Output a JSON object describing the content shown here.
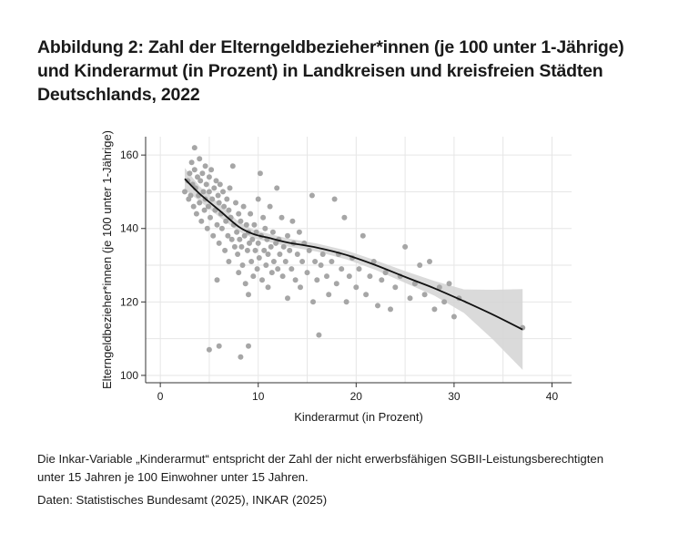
{
  "title": {
    "line1": "Abbildung 2: Zahl der Elterngeldbezieher*innen (je 100 unter 1-Jährige)",
    "line2": "und Kinderarmut (in Prozent) in Landkreisen und kreisfreien Städten",
    "line3": "Deutschlands, 2022"
  },
  "note": {
    "line1": "Die Inkar-Variable „Kinderarmut“ entspricht der Zahl der nicht erwerbsfähigen SGBII-Leistungsberechtigten",
    "line2": "unter 15 Jahren je 100 Einwohner unter 15 Jahren."
  },
  "source": "Daten: Statistisches Bundesamt (2025), INKAR (2025)",
  "colors": {
    "points": "#a6a6a6",
    "fit_line": "#111111",
    "confidence_band": "#d4d4d4",
    "grid": "#e6e6e6",
    "axis": "#333333"
  },
  "chart_data": {
    "type": "scatter",
    "xlabel": "Kinderarmut (in Prozent)",
    "ylabel": "Elterngeldbezieher*innen (je 100 unter 1-Jährige)",
    "xlim": [
      -1.5,
      42
    ],
    "ylim": [
      98,
      165
    ],
    "xticks": [
      0,
      10,
      20,
      30,
      40
    ],
    "yticks": [
      100,
      120,
      140,
      160
    ],
    "grid": true,
    "legend": "none",
    "fit": {
      "x": [
        2.5,
        4,
        6,
        8,
        9.5,
        11,
        13,
        16,
        19,
        22,
        25,
        28,
        31,
        34,
        37
      ],
      "y": [
        153.5,
        149.5,
        145,
        140.5,
        138.5,
        137.5,
        136.2,
        134.8,
        132.8,
        130,
        126.8,
        123.7,
        120.2,
        116.5,
        112.5
      ],
      "upper": [
        156.5,
        151.5,
        146.8,
        141.8,
        139.7,
        138.6,
        137.3,
        135.9,
        134,
        131.3,
        128.4,
        125.7,
        123.4,
        123.3,
        123.5
      ],
      "lower": [
        150.5,
        147.5,
        143.2,
        139.2,
        137.3,
        136.4,
        135.1,
        133.7,
        131.6,
        128.7,
        125.2,
        121.7,
        117,
        109.7,
        101.5
      ]
    },
    "points": [
      [
        2.5,
        150
      ],
      [
        2.8,
        153
      ],
      [
        2.9,
        148
      ],
      [
        3,
        155
      ],
      [
        3.1,
        149
      ],
      [
        3.2,
        158
      ],
      [
        3.3,
        152
      ],
      [
        3.4,
        146
      ],
      [
        3.5,
        162
      ],
      [
        3.5,
        156
      ],
      [
        3.6,
        151
      ],
      [
        3.7,
        144
      ],
      [
        3.8,
        154
      ],
      [
        3.9,
        149
      ],
      [
        4,
        159
      ],
      [
        4,
        147
      ],
      [
        4.1,
        153
      ],
      [
        4.2,
        142
      ],
      [
        4.3,
        155
      ],
      [
        4.4,
        150
      ],
      [
        4.5,
        145
      ],
      [
        4.6,
        157
      ],
      [
        4.6,
        148
      ],
      [
        4.7,
        152
      ],
      [
        4.8,
        140
      ],
      [
        4.9,
        146
      ],
      [
        5,
        154
      ],
      [
        5,
        150
      ],
      [
        5.1,
        143
      ],
      [
        5.2,
        156
      ],
      [
        5.3,
        148
      ],
      [
        5.4,
        138
      ],
      [
        5.5,
        151
      ],
      [
        5.6,
        145
      ],
      [
        5.7,
        153
      ],
      [
        5.8,
        141
      ],
      [
        5.9,
        149
      ],
      [
        6,
        147
      ],
      [
        6,
        136
      ],
      [
        6.1,
        152
      ],
      [
        6.2,
        144
      ],
      [
        6.3,
        140
      ],
      [
        6.4,
        150
      ],
      [
        6.5,
        146
      ],
      [
        6.6,
        134
      ],
      [
        6.7,
        142
      ],
      [
        6.8,
        148
      ],
      [
        6.9,
        138
      ],
      [
        7,
        145
      ],
      [
        7,
        131
      ],
      [
        7.1,
        151
      ],
      [
        7.2,
        143
      ],
      [
        7.3,
        137
      ],
      [
        7.4,
        157
      ],
      [
        7.5,
        141
      ],
      [
        7.6,
        135
      ],
      [
        7.7,
        147
      ],
      [
        7.8,
        139
      ],
      [
        7.9,
        133
      ],
      [
        8,
        144
      ],
      [
        8,
        128
      ],
      [
        8.1,
        137
      ],
      [
        8.2,
        142
      ],
      [
        8.3,
        135
      ],
      [
        8.4,
        130
      ],
      [
        8.5,
        146
      ],
      [
        8.6,
        138
      ],
      [
        8.7,
        125
      ],
      [
        8.8,
        141
      ],
      [
        8.9,
        134
      ],
      [
        9,
        139
      ],
      [
        9,
        122
      ],
      [
        9.1,
        136
      ],
      [
        9.2,
        144
      ],
      [
        9.3,
        131
      ],
      [
        9.4,
        137
      ],
      [
        9.5,
        127
      ],
      [
        9.6,
        141
      ],
      [
        9.7,
        134
      ],
      [
        9.8,
        139
      ],
      [
        9.9,
        129
      ],
      [
        10,
        148
      ],
      [
        10,
        136
      ],
      [
        10.1,
        132
      ],
      [
        10.2,
        155
      ],
      [
        10.3,
        138
      ],
      [
        10.4,
        126
      ],
      [
        10.5,
        143
      ],
      [
        10.6,
        134
      ],
      [
        10.7,
        140
      ],
      [
        10.8,
        130
      ],
      [
        10.9,
        137
      ],
      [
        11,
        133
      ],
      [
        11,
        124
      ],
      [
        11.2,
        146
      ],
      [
        11.3,
        135
      ],
      [
        11.4,
        128
      ],
      [
        11.5,
        139
      ],
      [
        11.6,
        131
      ],
      [
        11.8,
        136
      ],
      [
        11.9,
        151
      ],
      [
        12,
        129
      ],
      [
        12.1,
        137
      ],
      [
        12.2,
        133
      ],
      [
        12.4,
        143
      ],
      [
        12.5,
        127
      ],
      [
        12.6,
        135
      ],
      [
        12.8,
        131
      ],
      [
        13,
        138
      ],
      [
        13,
        121
      ],
      [
        13.2,
        134
      ],
      [
        13.4,
        129
      ],
      [
        13.5,
        142
      ],
      [
        13.6,
        136
      ],
      [
        13.8,
        126
      ],
      [
        14,
        133
      ],
      [
        14.2,
        139
      ],
      [
        14.3,
        124
      ],
      [
        14.5,
        131
      ],
      [
        14.7,
        136
      ],
      [
        15,
        128
      ],
      [
        15.2,
        134
      ],
      [
        15.5,
        149
      ],
      [
        15.6,
        120
      ],
      [
        15.8,
        131
      ],
      [
        16,
        126
      ],
      [
        16.2,
        111
      ],
      [
        16.4,
        130
      ],
      [
        16.6,
        133
      ],
      [
        17,
        127
      ],
      [
        17.2,
        122
      ],
      [
        17.5,
        131
      ],
      [
        17.8,
        148
      ],
      [
        18,
        125
      ],
      [
        18.2,
        133
      ],
      [
        18.5,
        129
      ],
      [
        18.8,
        143
      ],
      [
        19,
        120
      ],
      [
        19.3,
        127
      ],
      [
        19.6,
        132
      ],
      [
        20,
        124
      ],
      [
        20.3,
        129
      ],
      [
        20.7,
        138
      ],
      [
        21,
        122
      ],
      [
        21.4,
        127
      ],
      [
        21.8,
        131
      ],
      [
        22.2,
        119
      ],
      [
        22.6,
        126
      ],
      [
        23,
        128
      ],
      [
        23.5,
        118
      ],
      [
        24,
        124
      ],
      [
        24.5,
        127
      ],
      [
        25,
        135
      ],
      [
        25.5,
        121
      ],
      [
        26,
        125
      ],
      [
        26.5,
        130
      ],
      [
        27,
        122
      ],
      [
        27.5,
        131
      ],
      [
        28,
        118
      ],
      [
        28.5,
        124
      ],
      [
        29,
        120
      ],
      [
        29.5,
        125
      ],
      [
        30,
        116
      ],
      [
        30.5,
        121
      ],
      [
        37,
        113
      ],
      [
        5,
        107
      ],
      [
        6,
        108
      ],
      [
        9,
        108
      ],
      [
        8.2,
        105
      ],
      [
        5.8,
        126
      ]
    ]
  }
}
